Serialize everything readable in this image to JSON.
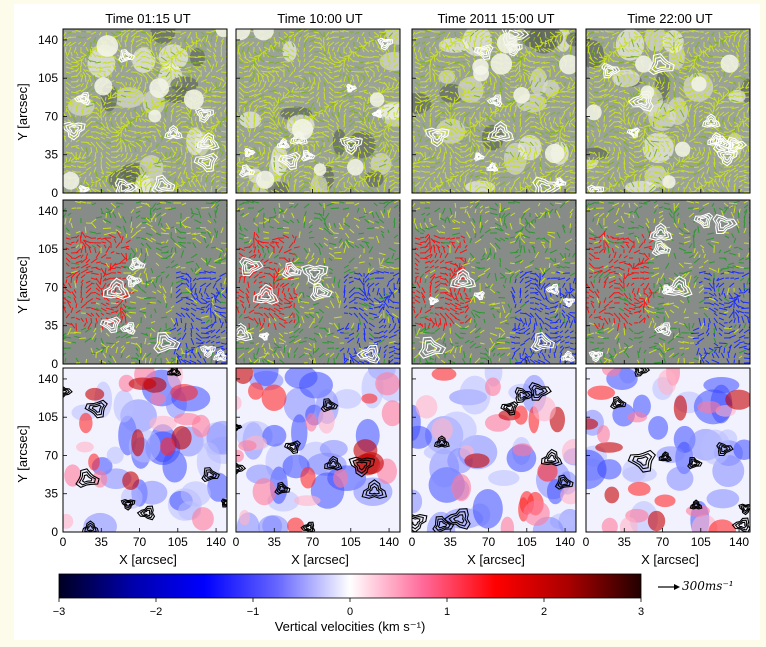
{
  "panel_titles": [
    "Time 01:15 UT",
    "Time 10:00 UT",
    "Time 2011 15:00 UT",
    "Time 22:00 UT"
  ],
  "ylabel": "Y [arcsec]",
  "xlabel": "X [arcsec]",
  "tick_values": [
    0,
    35,
    70,
    105,
    140
  ],
  "axis_limits": [
    0,
    150
  ],
  "rows": [
    {
      "row": "top",
      "content": "horizontal velocity vectors over grey vertical-velocity map with white contours"
    },
    {
      "row": "middle",
      "content": "red, blue and green/yellow vectors over grey map with white contours"
    },
    {
      "row": "bottom",
      "content": "vertical velocity map (blue-white-red) with black contours"
    }
  ],
  "colorbar": {
    "label": "Vertical velocities (km s⁻¹)",
    "ticks": [
      -3,
      -2,
      -1,
      0,
      1,
      2,
      3
    ],
    "tick_labels": [
      "−3",
      "−2",
      "−1",
      "0",
      "1",
      "2",
      "3"
    ],
    "range": [
      -3,
      3
    ],
    "colormap": [
      "#000022",
      "#0000aa",
      "#0000ff",
      "#6666ff",
      "#ffffff",
      "#ff6a9a",
      "#ff0000",
      "#aa0000",
      "#220000"
    ]
  },
  "reference_arrow": {
    "label": "300ms⁻¹"
  },
  "colors": {
    "vector_yellow": "#c8e01e",
    "vector_green": "#2b9a2b",
    "vector_red": "#ff1010",
    "vector_blue": "#1a2aff",
    "grey_background": "#878c88",
    "contour_white": "#ffffff",
    "contour_black": "#000000"
  }
}
